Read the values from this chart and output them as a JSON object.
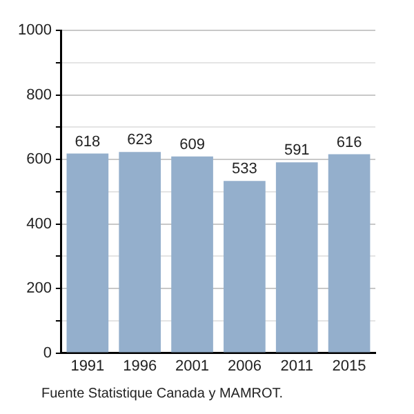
{
  "chart_data": {
    "type": "bar",
    "categories": [
      "1991",
      "1996",
      "2001",
      "2006",
      "2011",
      "2015"
    ],
    "values": [
      618,
      623,
      609,
      533,
      591,
      616
    ],
    "color": "#94afcc",
    "ylim": [
      0,
      1000
    ],
    "yticks": [
      0,
      {
        "value": 100,
        "label": null
      },
      200,
      {
        "value": 300,
        "label": null
      },
      400,
      {
        "value": 500,
        "label": null
      },
      600,
      {
        "value": 700,
        "label": null
      },
      800,
      {
        "value": 900,
        "label": null
      },
      1000
    ],
    "grid": true,
    "data_labels": true,
    "legend": false,
    "annotations": [
      "Fuente Statistique Canada y MAMROT."
    ]
  }
}
